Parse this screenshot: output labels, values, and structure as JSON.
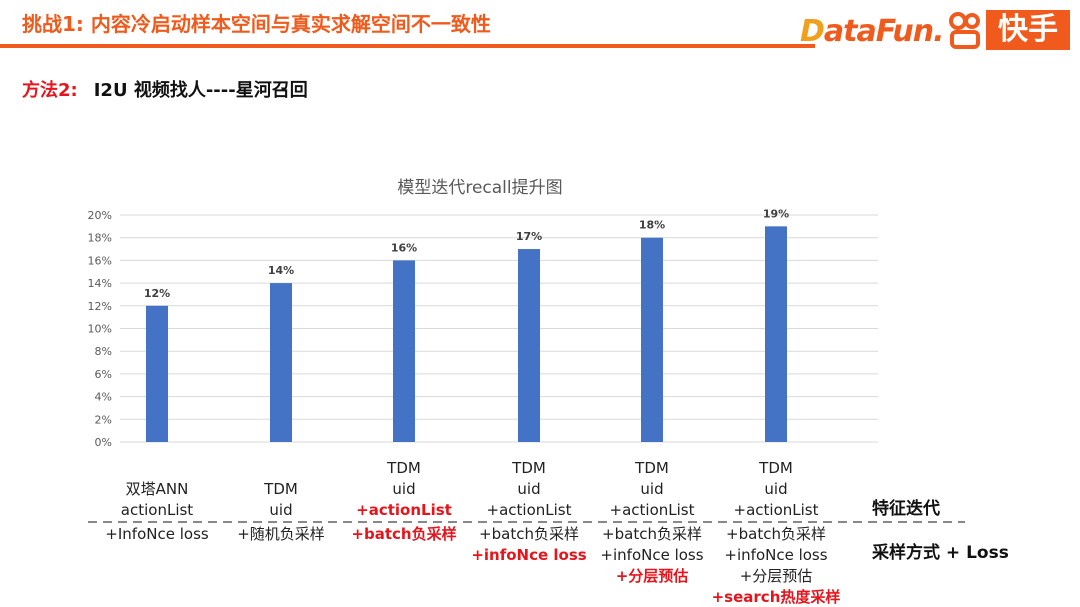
{
  "header": {
    "title": "挑战1: 内容冷启动样本空间与真实求解空间不一致性",
    "logo_datafun": "DataFun.",
    "logo_kuaishou": "快手"
  },
  "subtitle": {
    "label": "方法2:",
    "text": "I2U 视频找人----星河召回"
  },
  "colors": {
    "accent": "#f05a1c",
    "bar": "#4472c4",
    "highlight": "#e8141c"
  },
  "chart_data": {
    "type": "bar",
    "title": "模型迭代recall提升图",
    "categories": [
      "双塔ANN actionList",
      "TDM uid",
      "TDM uid +actionList",
      "TDM uid +actionList",
      "TDM uid +actionList",
      "TDM uid +actionList"
    ],
    "values": [
      12,
      14,
      16,
      17,
      18,
      19
    ],
    "data_labels": [
      "12%",
      "14%",
      "16%",
      "17%",
      "18%",
      "19%"
    ],
    "yticks": [
      "0%",
      "2%",
      "4%",
      "6%",
      "8%",
      "10%",
      "12%",
      "14%",
      "16%",
      "18%",
      "20%"
    ],
    "ylim": [
      0,
      20
    ],
    "grid": true
  },
  "columns": [
    {
      "feature": [
        {
          "t": "双塔ANN",
          "hl": false
        },
        {
          "t": "actionList",
          "hl": false
        }
      ],
      "sampling": [
        {
          "t": "+InfoNce loss",
          "hl": false
        }
      ]
    },
    {
      "feature": [
        {
          "t": "TDM",
          "hl": false
        },
        {
          "t": "uid",
          "hl": false
        }
      ],
      "sampling": [
        {
          "t": "+随机负采样",
          "hl": false
        }
      ]
    },
    {
      "feature": [
        {
          "t": "TDM",
          "hl": false
        },
        {
          "t": "uid",
          "hl": false
        },
        {
          "t": "+actionList",
          "hl": true
        }
      ],
      "sampling": [
        {
          "t": "+batch负采样",
          "hl": true
        }
      ]
    },
    {
      "feature": [
        {
          "t": "TDM",
          "hl": false
        },
        {
          "t": "uid",
          "hl": false
        },
        {
          "t": "+actionList",
          "hl": false
        }
      ],
      "sampling": [
        {
          "t": "+batch负采样",
          "hl": false
        },
        {
          "t": "+infoNce loss",
          "hl": true
        }
      ]
    },
    {
      "feature": [
        {
          "t": "TDM",
          "hl": false
        },
        {
          "t": "uid",
          "hl": false
        },
        {
          "t": "+actionList",
          "hl": false
        }
      ],
      "sampling": [
        {
          "t": "+batch负采样",
          "hl": false
        },
        {
          "t": "+infoNce loss",
          "hl": false
        },
        {
          "t": "+分层预估",
          "hl": true
        }
      ]
    },
    {
      "feature": [
        {
          "t": "TDM",
          "hl": false
        },
        {
          "t": "uid",
          "hl": false
        },
        {
          "t": "+actionList",
          "hl": false
        }
      ],
      "sampling": [
        {
          "t": "+batch负采样",
          "hl": false
        },
        {
          "t": "+infoNce loss",
          "hl": false
        },
        {
          "t": "+分层预估",
          "hl": false
        },
        {
          "t": "+search热度采样",
          "hl": true
        }
      ]
    }
  ],
  "row_labels": {
    "feature": "特征迭代",
    "sampling": "采样方式 + Loss"
  }
}
